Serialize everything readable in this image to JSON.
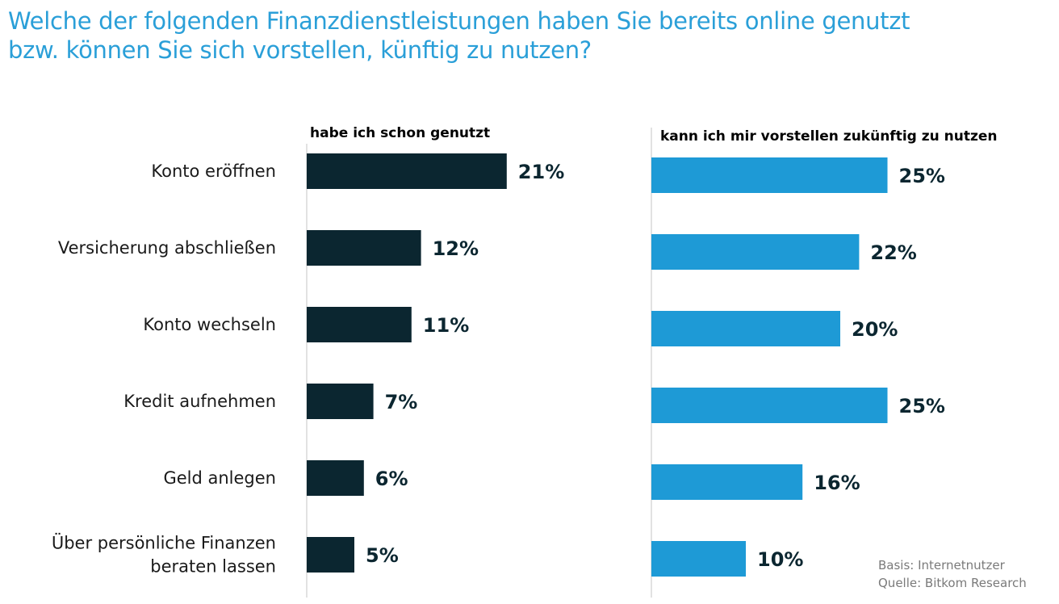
{
  "title": {
    "line1": "Welche der folgenden Finanzdienstleistungen haben Sie bereits online genutzt",
    "line2": "bzw. können Sie sich vorstellen,  künftig zu nutzen?"
  },
  "source": {
    "basis": "Basis: Internetnutzer",
    "quelle": "Quelle: Bitkom Research"
  },
  "colors": {
    "title": "#2a9fd8",
    "series_used": "#0b2630",
    "series_future": "#1e9ad6"
  },
  "chart_data": {
    "type": "bar",
    "orientation": "horizontal",
    "categories": [
      [
        "Konto eröffnen"
      ],
      [
        "Versicherung abschließen"
      ],
      [
        "Konto wechseln"
      ],
      [
        "Kredit aufnehmen"
      ],
      [
        "Geld anlegen"
      ],
      [
        "Über persönliche Finanzen",
        "beraten lassen"
      ]
    ],
    "series": [
      {
        "name": "habe ich schon genutzt",
        "values": [
          21,
          12,
          11,
          7,
          6,
          5
        ],
        "labels": [
          "21%",
          "12%",
          "11%",
          "7%",
          "6%",
          "5%"
        ],
        "color": "#0b2630"
      },
      {
        "name": "kann ich mir vorstellen zukünftig zu nutzen",
        "values": [
          25,
          22,
          20,
          25,
          16,
          10
        ],
        "labels": [
          "25%",
          "22%",
          "20%",
          "25%",
          "16%",
          "10%"
        ],
        "color": "#1e9ad6"
      }
    ],
    "unit": "%",
    "grid": false,
    "legend": "panel titles above each bar column"
  }
}
